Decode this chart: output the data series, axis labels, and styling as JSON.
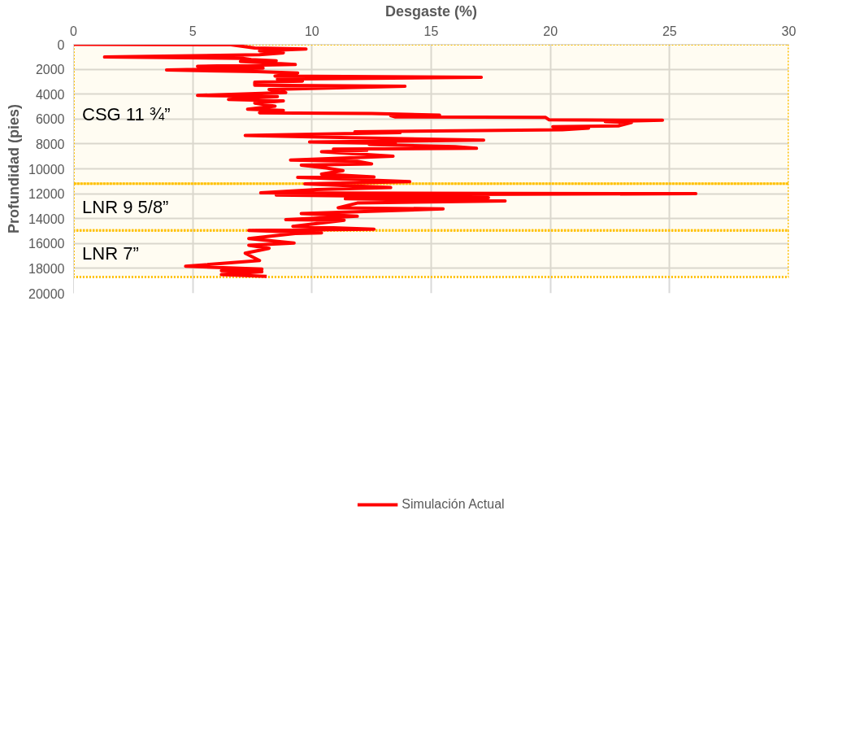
{
  "chart_data": {
    "type": "line",
    "xlabel": "Desgaste (%)",
    "ylabel": "Profundidad (pies)",
    "xlim": [
      0,
      30
    ],
    "xticks": [
      0,
      5,
      10,
      15,
      20,
      25,
      30
    ],
    "ylim": [
      20000,
      0
    ],
    "yticks": [
      0,
      2000,
      4000,
      6000,
      8000,
      10000,
      12000,
      14000,
      16000,
      18000,
      20000
    ],
    "grid": true,
    "legend": "bottom",
    "line_style": "solid",
    "series": [
      {
        "name": "Simulación Actual",
        "color": "#ff0000",
        "x": [
          0,
          6.6,
          7.6,
          9.75,
          7.8,
          8.8,
          7.8,
          1.3,
          7.1,
          7.45,
          8.5,
          7.0,
          9.3,
          5.2,
          7.95,
          3.9,
          7.7,
          9.4,
          8.45,
          17.1,
          8.55,
          9.6,
          7.6,
          7.6,
          13.9,
          8.2,
          8.9,
          5.2,
          8.55,
          6.5,
          8.8,
          7.6,
          8.45,
          7.3,
          8.8,
          7.8,
          12.5,
          15.35,
          13.3,
          13.5,
          19.8,
          19.95,
          24.7,
          22.3,
          23.4,
          22.85,
          20.1,
          21.6,
          20.5,
          11.8,
          13.7,
          7.2,
          11.6,
          17.2,
          9.9,
          13.5,
          12.4,
          16.0,
          16.9,
          10.9,
          12.3,
          10.4,
          13.4,
          9.1,
          11.9,
          12.5,
          9.55,
          10.6,
          11.3,
          10.4,
          12.6,
          9.4,
          14.1,
          9.7,
          13.3,
          10.2,
          7.85,
          26.1,
          8.5,
          17.4,
          11.4,
          18.1,
          11.9,
          11.1,
          15.5,
          9.55,
          11.9,
          8.9,
          11.35,
          9.2,
          12.6,
          7.35,
          10.4,
          9.3,
          7.35,
          9.25,
          7.35,
          8.2,
          7.2,
          7.8,
          4.7,
          7.9,
          6.2,
          7.9,
          6.2,
          8.1
        ],
        "values": [
          0,
          40,
          290,
          380,
          530,
          680,
          830,
          1020,
          1120,
          1220,
          1320,
          1370,
          1620,
          1760,
          1910,
          2060,
          2190,
          2300,
          2550,
          2650,
          2800,
          2950,
          3040,
          3280,
          3370,
          3630,
          3880,
          4100,
          4200,
          4420,
          4540,
          4720,
          4960,
          5210,
          5310,
          5500,
          5550,
          5690,
          5730,
          5830,
          5870,
          6070,
          6100,
          6210,
          6280,
          6550,
          6620,
          6730,
          6860,
          7020,
          7090,
          7320,
          7500,
          7700,
          7840,
          7980,
          8040,
          8220,
          8350,
          8410,
          8520,
          8630,
          8990,
          9300,
          9400,
          9600,
          9710,
          9940,
          10150,
          10420,
          10660,
          10690,
          11030,
          11210,
          11510,
          11660,
          11930,
          12000,
          12100,
          12320,
          12410,
          12580,
          12750,
          13130,
          13220,
          13590,
          13810,
          14080,
          14140,
          14620,
          14850,
          14950,
          15150,
          15200,
          15600,
          15970,
          16140,
          16390,
          16780,
          17370,
          17830,
          18060,
          18180,
          18270,
          18500,
          18650
        ]
      }
    ],
    "bands": [
      {
        "axis": "y",
        "from": 0,
        "to": 11200,
        "label": "CSG 11 ¾”",
        "color": "#ffc000"
      },
      {
        "axis": "y",
        "from": 11200,
        "to": 14950,
        "label": "LNR 9 5/8”",
        "color": "#ffc000"
      },
      {
        "axis": "y",
        "from": 14950,
        "to": 18700,
        "label": "LNR 7”",
        "color": "#ffc000"
      }
    ]
  }
}
